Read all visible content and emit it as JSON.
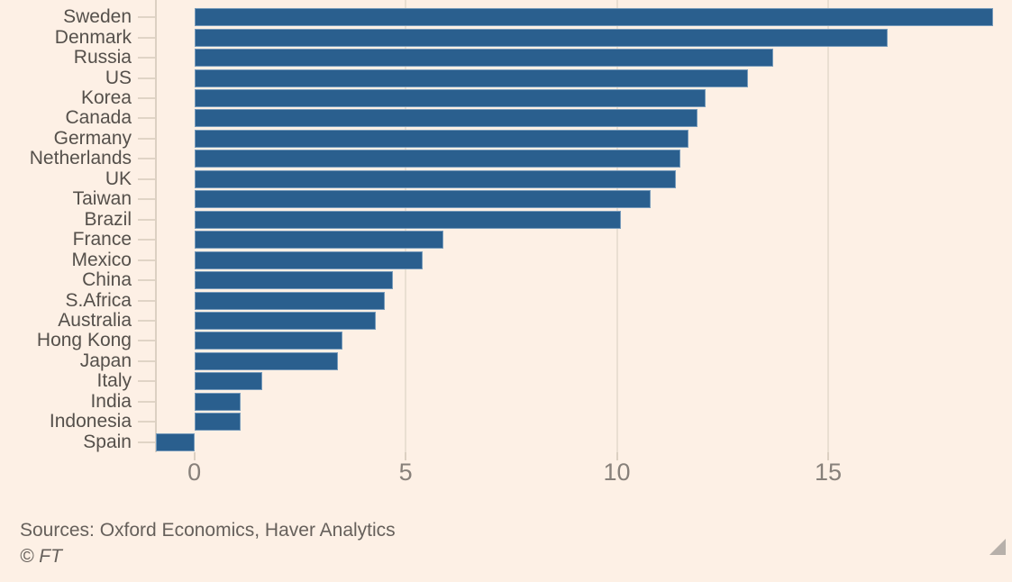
{
  "chart_data": {
    "type": "bar",
    "orientation": "horizontal",
    "title": "",
    "xlabel": "",
    "ylabel": "",
    "categories": [
      "Sweden",
      "Denmark",
      "Russia",
      "US",
      "Korea",
      "Canada",
      "Germany",
      "Netherlands",
      "UK",
      "Taiwan",
      "Brazil",
      "France",
      "Mexico",
      "China",
      "S.Africa",
      "Australia",
      "Hong Kong",
      "Japan",
      "Italy",
      "India",
      "Indonesia",
      "Spain"
    ],
    "values": [
      18.9,
      16.4,
      13.7,
      13.1,
      12.1,
      11.9,
      11.7,
      11.5,
      11.4,
      10.8,
      10.1,
      5.9,
      5.4,
      4.7,
      4.5,
      4.3,
      3.5,
      3.4,
      1.6,
      1.1,
      1.1,
      -0.9
    ],
    "xticks": [
      0,
      5,
      10,
      15
    ],
    "xlim": [
      -0.93,
      19.03
    ],
    "grid": true,
    "legend": "none"
  },
  "footer": {
    "sources": "Sources: Oxford Economics, Haver Analytics",
    "copyright": "© FT"
  },
  "icons": {
    "resize_handle": "resize-corner-triangle"
  },
  "colors": {
    "bg": "#FDF0E5",
    "bar": "#2A5F8E",
    "label": "#55504B",
    "axis-num": "#87807A",
    "grid": "#EADFD2",
    "tick": "#E0D4C6",
    "axis-line": "#DCD0C2",
    "source": "#66605B",
    "handle": "#B7B0AA"
  }
}
